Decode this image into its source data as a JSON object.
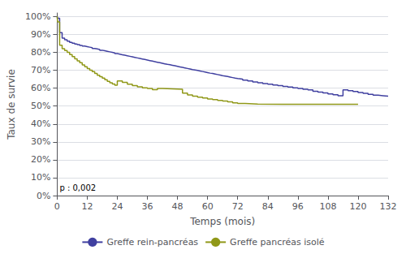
{
  "chart_data": {
    "type": "step",
    "x_label": "Temps (mois)",
    "y_label": "Taux de survie",
    "series": [
      {
        "name": "Greffe rein-pancréas",
        "color": "#4040a0",
        "x": [
          0,
          0.2,
          1,
          2,
          3,
          4,
          5,
          6,
          7,
          8,
          9,
          10,
          11,
          12,
          13,
          14,
          15,
          16,
          17,
          18,
          19,
          20,
          21,
          22,
          23,
          24,
          25,
          26,
          27,
          28,
          29,
          30,
          31,
          32,
          33,
          34,
          35,
          36,
          37,
          38,
          39,
          40,
          41,
          42,
          43,
          44,
          45,
          46,
          47,
          48,
          49,
          50,
          51,
          52,
          53,
          54,
          55,
          56,
          57,
          58,
          59,
          60,
          61,
          62,
          63,
          64,
          65,
          66,
          67,
          68,
          69,
          70,
          71,
          72,
          74,
          76,
          78,
          80,
          82,
          84,
          86,
          88,
          90,
          92,
          94,
          96,
          98,
          100,
          102,
          104,
          106,
          108,
          110,
          112,
          114,
          116,
          118,
          120,
          122,
          124,
          126,
          128,
          130,
          132
        ],
        "values": [
          1.0,
          0.99,
          0.91,
          0.88,
          0.87,
          0.862,
          0.856,
          0.851,
          0.847,
          0.843,
          0.839,
          0.835,
          0.832,
          0.829,
          0.826,
          0.822,
          0.819,
          0.816,
          0.812,
          0.809,
          0.806,
          0.803,
          0.8,
          0.797,
          0.793,
          0.79,
          0.787,
          0.784,
          0.781,
          0.778,
          0.775,
          0.772,
          0.769,
          0.766,
          0.763,
          0.76,
          0.757,
          0.754,
          0.751,
          0.748,
          0.745,
          0.742,
          0.739,
          0.736,
          0.733,
          0.731,
          0.728,
          0.725,
          0.722,
          0.719,
          0.716,
          0.713,
          0.71,
          0.707,
          0.704,
          0.702,
          0.699,
          0.696,
          0.693,
          0.69,
          0.687,
          0.684,
          0.682,
          0.679,
          0.676,
          0.673,
          0.67,
          0.668,
          0.665,
          0.662,
          0.659,
          0.656,
          0.654,
          0.651,
          0.645,
          0.64,
          0.635,
          0.63,
          0.626,
          0.622,
          0.618,
          0.614,
          0.61,
          0.606,
          0.602,
          0.598,
          0.594,
          0.59,
          0.583,
          0.578,
          0.573,
          0.568,
          0.563,
          0.558,
          0.591,
          0.586,
          0.581,
          0.576,
          0.571,
          0.566,
          0.561,
          0.558,
          0.555,
          0.552
        ]
      },
      {
        "name": "Greffe pancréas isolé",
        "color": "#909818",
        "x": [
          0,
          0.2,
          1,
          2,
          3,
          4,
          5,
          6,
          7,
          8,
          9,
          10,
          11,
          12,
          13,
          14,
          15,
          16,
          17,
          18,
          19,
          20,
          21,
          22,
          23,
          24,
          26,
          28,
          30,
          32,
          34,
          36,
          38,
          40,
          42,
          44,
          46,
          48,
          50,
          52,
          54,
          56,
          58,
          60,
          62,
          64,
          66,
          68,
          70,
          72,
          75,
          80,
          90,
          100,
          110,
          120
        ],
        "values": [
          1.0,
          0.97,
          0.84,
          0.82,
          0.81,
          0.8,
          0.788,
          0.776,
          0.764,
          0.752,
          0.742,
          0.73,
          0.72,
          0.71,
          0.7,
          0.692,
          0.682,
          0.672,
          0.664,
          0.656,
          0.647,
          0.638,
          0.63,
          0.623,
          0.616,
          0.64,
          0.632,
          0.622,
          0.614,
          0.608,
          0.602,
          0.598,
          0.592,
          0.598,
          0.597,
          0.596,
          0.595,
          0.594,
          0.572,
          0.562,
          0.555,
          0.55,
          0.545,
          0.54,
          0.536,
          0.532,
          0.528,
          0.524,
          0.518,
          0.514,
          0.511,
          0.51,
          0.51,
          0.51,
          0.51,
          0.51
        ]
      }
    ],
    "xlim": [
      0,
      132
    ],
    "xticks": [
      0,
      12,
      24,
      36,
      48,
      60,
      72,
      84,
      96,
      108,
      120,
      132
    ],
    "ylim": [
      0.0,
      1.02
    ],
    "yticks": [
      {
        "value": 0.0,
        "label": "0%"
      },
      {
        "value": 0.1,
        "label": "10%"
      },
      {
        "value": 0.2,
        "label": "20%"
      },
      {
        "value": 0.3,
        "label": "30%"
      },
      {
        "value": 0.4,
        "label": "40%"
      },
      {
        "value": 0.5,
        "label": "50%"
      },
      {
        "value": 0.6,
        "label": "60%"
      },
      {
        "value": 0.7,
        "label": "70%"
      },
      {
        "value": 0.8,
        "label": "80%"
      },
      {
        "value": 0.9,
        "label": "90%"
      },
      {
        "value": 1.0,
        "label": "100%"
      }
    ],
    "annotations": [
      {
        "text": "p : 0,002",
        "x": 1,
        "y": 0.02
      }
    ],
    "grid": "y",
    "legend": "bottom"
  }
}
